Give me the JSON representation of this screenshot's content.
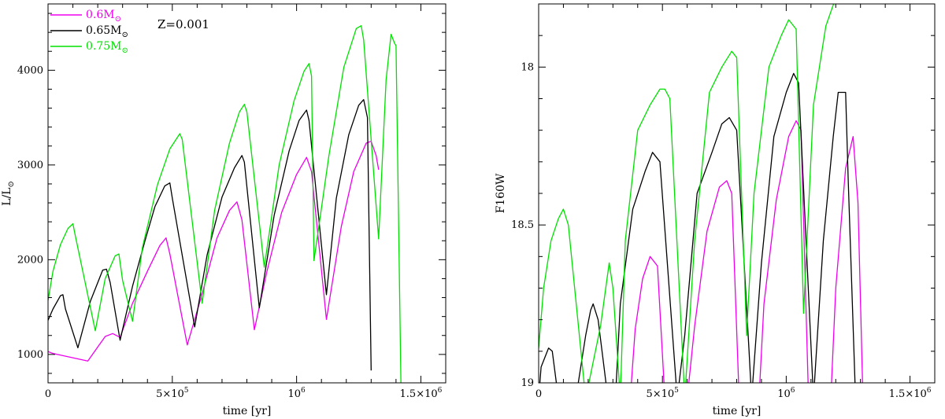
{
  "chart_data": [
    {
      "type": "line",
      "xlabel": "time [yr]",
      "ylabel": "L/L",
      "ylabel_symbol": "⊙",
      "xlim": [
        0,
        1600000
      ],
      "ylim": [
        700,
        4700
      ],
      "x_ticks": [
        {
          "value": 0,
          "label": "0"
        },
        {
          "value": 500000,
          "label": "5×10",
          "exp": "5"
        },
        {
          "value": 1000000,
          "label": "10",
          "exp": "6"
        },
        {
          "value": 1500000,
          "label": "1.5×10",
          "exp": "6"
        }
      ],
      "y_ticks": [
        {
          "value": 1000,
          "label": "1000"
        },
        {
          "value": 2000,
          "label": "2000"
        },
        {
          "value": 3000,
          "label": "3000"
        },
        {
          "value": 4000,
          "label": "4000"
        }
      ],
      "annotation": "Z=0.001",
      "legend": {
        "placement": "top-left"
      },
      "series": [
        {
          "name": "0.6M",
          "name_symbol": "⊙",
          "color": "#ee00ee",
          "points": [
            [
              0,
              1030
            ],
            [
              20000,
              1010
            ],
            [
              160000,
              930
            ],
            [
              230000,
              1190
            ],
            [
              260000,
              1220
            ],
            [
              290000,
              1180
            ],
            [
              290000,
              1180
            ],
            [
              340000,
              1540
            ],
            [
              400000,
              1880
            ],
            [
              450000,
              2150
            ],
            [
              475000,
              2230
            ],
            [
              490000,
              2060
            ],
            [
              560000,
              1100
            ],
            [
              620000,
              1640
            ],
            [
              680000,
              2230
            ],
            [
              730000,
              2520
            ],
            [
              760000,
              2610
            ],
            [
              780000,
              2420
            ],
            [
              830000,
              1260
            ],
            [
              880000,
              1870
            ],
            [
              940000,
              2500
            ],
            [
              1000000,
              2900
            ],
            [
              1040000,
              3080
            ],
            [
              1060000,
              2930
            ],
            [
              1120000,
              1370
            ],
            [
              1180000,
              2350
            ],
            [
              1230000,
              2930
            ],
            [
              1280000,
              3230
            ],
            [
              1300000,
              3250
            ],
            [
              1320000,
              3100
            ],
            [
              1330000,
              2950
            ]
          ]
        },
        {
          "name": "0.65M",
          "name_symbol": "⊙",
          "color": "#000000",
          "points": [
            [
              0,
              1360
            ],
            [
              20000,
              1480
            ],
            [
              50000,
              1620
            ],
            [
              60000,
              1630
            ],
            [
              70000,
              1480
            ],
            [
              120000,
              1070
            ],
            [
              170000,
              1560
            ],
            [
              220000,
              1890
            ],
            [
              235000,
              1900
            ],
            [
              250000,
              1760
            ],
            [
              290000,
              1150
            ],
            [
              340000,
              1720
            ],
            [
              390000,
              2200
            ],
            [
              430000,
              2560
            ],
            [
              470000,
              2780
            ],
            [
              490000,
              2810
            ],
            [
              500000,
              2650
            ],
            [
              590000,
              1290
            ],
            [
              640000,
              2050
            ],
            [
              700000,
              2660
            ],
            [
              750000,
              2970
            ],
            [
              780000,
              3100
            ],
            [
              790000,
              3030
            ],
            [
              850000,
              1490
            ],
            [
              910000,
              2470
            ],
            [
              970000,
              3150
            ],
            [
              1010000,
              3470
            ],
            [
              1040000,
              3580
            ],
            [
              1050000,
              3470
            ],
            [
              1120000,
              1630
            ],
            [
              1160000,
              2650
            ],
            [
              1210000,
              3320
            ],
            [
              1250000,
              3630
            ],
            [
              1270000,
              3690
            ],
            [
              1285000,
              3500
            ],
            [
              1300000,
              830
            ]
          ]
        },
        {
          "name": "0.75M",
          "name_symbol": "⊙",
          "color": "#00e000",
          "points": [
            [
              0,
              1570
            ],
            [
              20000,
              1880
            ],
            [
              50000,
              2160
            ],
            [
              80000,
              2330
            ],
            [
              100000,
              2380
            ],
            [
              110000,
              2250
            ],
            [
              190000,
              1250
            ],
            [
              230000,
              1800
            ],
            [
              270000,
              2040
            ],
            [
              285000,
              2060
            ],
            [
              300000,
              1780
            ],
            [
              340000,
              1350
            ],
            [
              380000,
              2130
            ],
            [
              440000,
              2790
            ],
            [
              490000,
              3170
            ],
            [
              530000,
              3330
            ],
            [
              540000,
              3270
            ],
            [
              620000,
              1540
            ],
            [
              670000,
              2520
            ],
            [
              730000,
              3230
            ],
            [
              770000,
              3560
            ],
            [
              790000,
              3640
            ],
            [
              800000,
              3560
            ],
            [
              870000,
              1920
            ],
            [
              930000,
              3000
            ],
            [
              990000,
              3680
            ],
            [
              1030000,
              3990
            ],
            [
              1050000,
              4070
            ],
            [
              1060000,
              3940
            ],
            [
              1070000,
              1990
            ],
            [
              1130000,
              3100
            ],
            [
              1190000,
              4030
            ],
            [
              1240000,
              4440
            ],
            [
              1260000,
              4470
            ],
            [
              1270000,
              4320
            ],
            [
              1330000,
              2220
            ],
            [
              1360000,
              3900
            ],
            [
              1380000,
              4380
            ],
            [
              1395000,
              4280
            ],
            [
              1400000,
              4260
            ],
            [
              1420000,
              650
            ]
          ]
        }
      ]
    },
    {
      "type": "line",
      "xlabel": "time [yr]",
      "ylabel": "F160W",
      "xlim": [
        0,
        1600000
      ],
      "ylim": [
        19,
        17.8
      ],
      "x_ticks": [
        {
          "value": 0,
          "label": "0"
        },
        {
          "value": 500000,
          "label": "5×10",
          "exp": "5"
        },
        {
          "value": 1000000,
          "label": "10",
          "exp": "6"
        },
        {
          "value": 1500000,
          "label": "1.5×10",
          "exp": "6"
        }
      ],
      "y_ticks": [
        {
          "value": 18,
          "label": "18"
        },
        {
          "value": 18.5,
          "label": "18.5"
        },
        {
          "value": 19,
          "label": "19"
        }
      ],
      "series": [
        {
          "name": "0.6M",
          "color": "#ee00ee",
          "points": [
            [
              370000,
              19.05
            ],
            [
              390000,
              18.83
            ],
            [
              420000,
              18.67
            ],
            [
              450000,
              18.6
            ],
            [
              480000,
              18.63
            ],
            [
              510000,
              19.05
            ],
            [
              600000,
              19.05
            ],
            [
              630000,
              18.82
            ],
            [
              680000,
              18.52
            ],
            [
              730000,
              18.38
            ],
            [
              760000,
              18.36
            ],
            [
              780000,
              18.4
            ],
            [
              810000,
              19.05
            ],
            [
              890000,
              19.05
            ],
            [
              910000,
              18.75
            ],
            [
              960000,
              18.42
            ],
            [
              1010000,
              18.22
            ],
            [
              1040000,
              18.17
            ],
            [
              1060000,
              18.2
            ],
            [
              1090000,
              19.05
            ],
            [
              1180000,
              19.05
            ],
            [
              1200000,
              18.7
            ],
            [
              1240000,
              18.32
            ],
            [
              1270000,
              18.22
            ],
            [
              1290000,
              18.43
            ],
            [
              1310000,
              19.05
            ]
          ]
        },
        {
          "name": "0.65M",
          "color": "#000000",
          "points": [
            [
              0,
              19.05
            ],
            [
              10000,
              18.95
            ],
            [
              40000,
              18.89
            ],
            [
              55000,
              18.9
            ],
            [
              80000,
              19.05
            ],
            [
              150000,
              19.05
            ],
            [
              190000,
              18.85
            ],
            [
              210000,
              18.77
            ],
            [
              220000,
              18.75
            ],
            [
              240000,
              18.8
            ],
            [
              280000,
              19.05
            ],
            [
              310000,
              19.05
            ],
            [
              330000,
              18.75
            ],
            [
              380000,
              18.45
            ],
            [
              430000,
              18.33
            ],
            [
              460000,
              18.27
            ],
            [
              490000,
              18.3
            ],
            [
              560000,
              19.05
            ],
            [
              590000,
              18.85
            ],
            [
              640000,
              18.4
            ],
            [
              700000,
              18.27
            ],
            [
              740000,
              18.18
            ],
            [
              770000,
              18.16
            ],
            [
              800000,
              18.2
            ],
            [
              850000,
              18.9
            ],
            [
              860000,
              19.05
            ],
            [
              900000,
              18.62
            ],
            [
              950000,
              18.22
            ],
            [
              1000000,
              18.08
            ],
            [
              1030000,
              18.02
            ],
            [
              1050000,
              18.05
            ],
            [
              1110000,
              19.05
            ],
            [
              1150000,
              18.55
            ],
            [
              1190000,
              18.22
            ],
            [
              1210000,
              18.08
            ],
            [
              1240000,
              18.08
            ],
            [
              1250000,
              18.35
            ],
            [
              1280000,
              19.05
            ]
          ]
        },
        {
          "name": "0.75M",
          "color": "#00e000",
          "points": [
            [
              0,
              18.89
            ],
            [
              20000,
              18.7
            ],
            [
              50000,
              18.55
            ],
            [
              80000,
              18.48
            ],
            [
              100000,
              18.45
            ],
            [
              120000,
              18.5
            ],
            [
              190000,
              19.05
            ],
            [
              250000,
              18.82
            ],
            [
              285000,
              18.62
            ],
            [
              300000,
              18.7
            ],
            [
              330000,
              19.05
            ],
            [
              350000,
              18.55
            ],
            [
              400000,
              18.2
            ],
            [
              450000,
              18.12
            ],
            [
              490000,
              18.07
            ],
            [
              510000,
              18.07
            ],
            [
              530000,
              18.1
            ],
            [
              590000,
              19.05
            ],
            [
              630000,
              18.55
            ],
            [
              690000,
              18.08
            ],
            [
              740000,
              18.0
            ],
            [
              780000,
              17.95
            ],
            [
              800000,
              17.97
            ],
            [
              840000,
              18.85
            ],
            [
              870000,
              18.4
            ],
            [
              930000,
              18.0
            ],
            [
              980000,
              17.9
            ],
            [
              1010000,
              17.85
            ],
            [
              1040000,
              17.88
            ],
            [
              1070000,
              18.78
            ],
            [
              1110000,
              18.12
            ],
            [
              1160000,
              17.87
            ],
            [
              1200000,
              17.78
            ],
            [
              1230000,
              17.74
            ],
            [
              1250000,
              17.76
            ]
          ]
        }
      ]
    }
  ]
}
